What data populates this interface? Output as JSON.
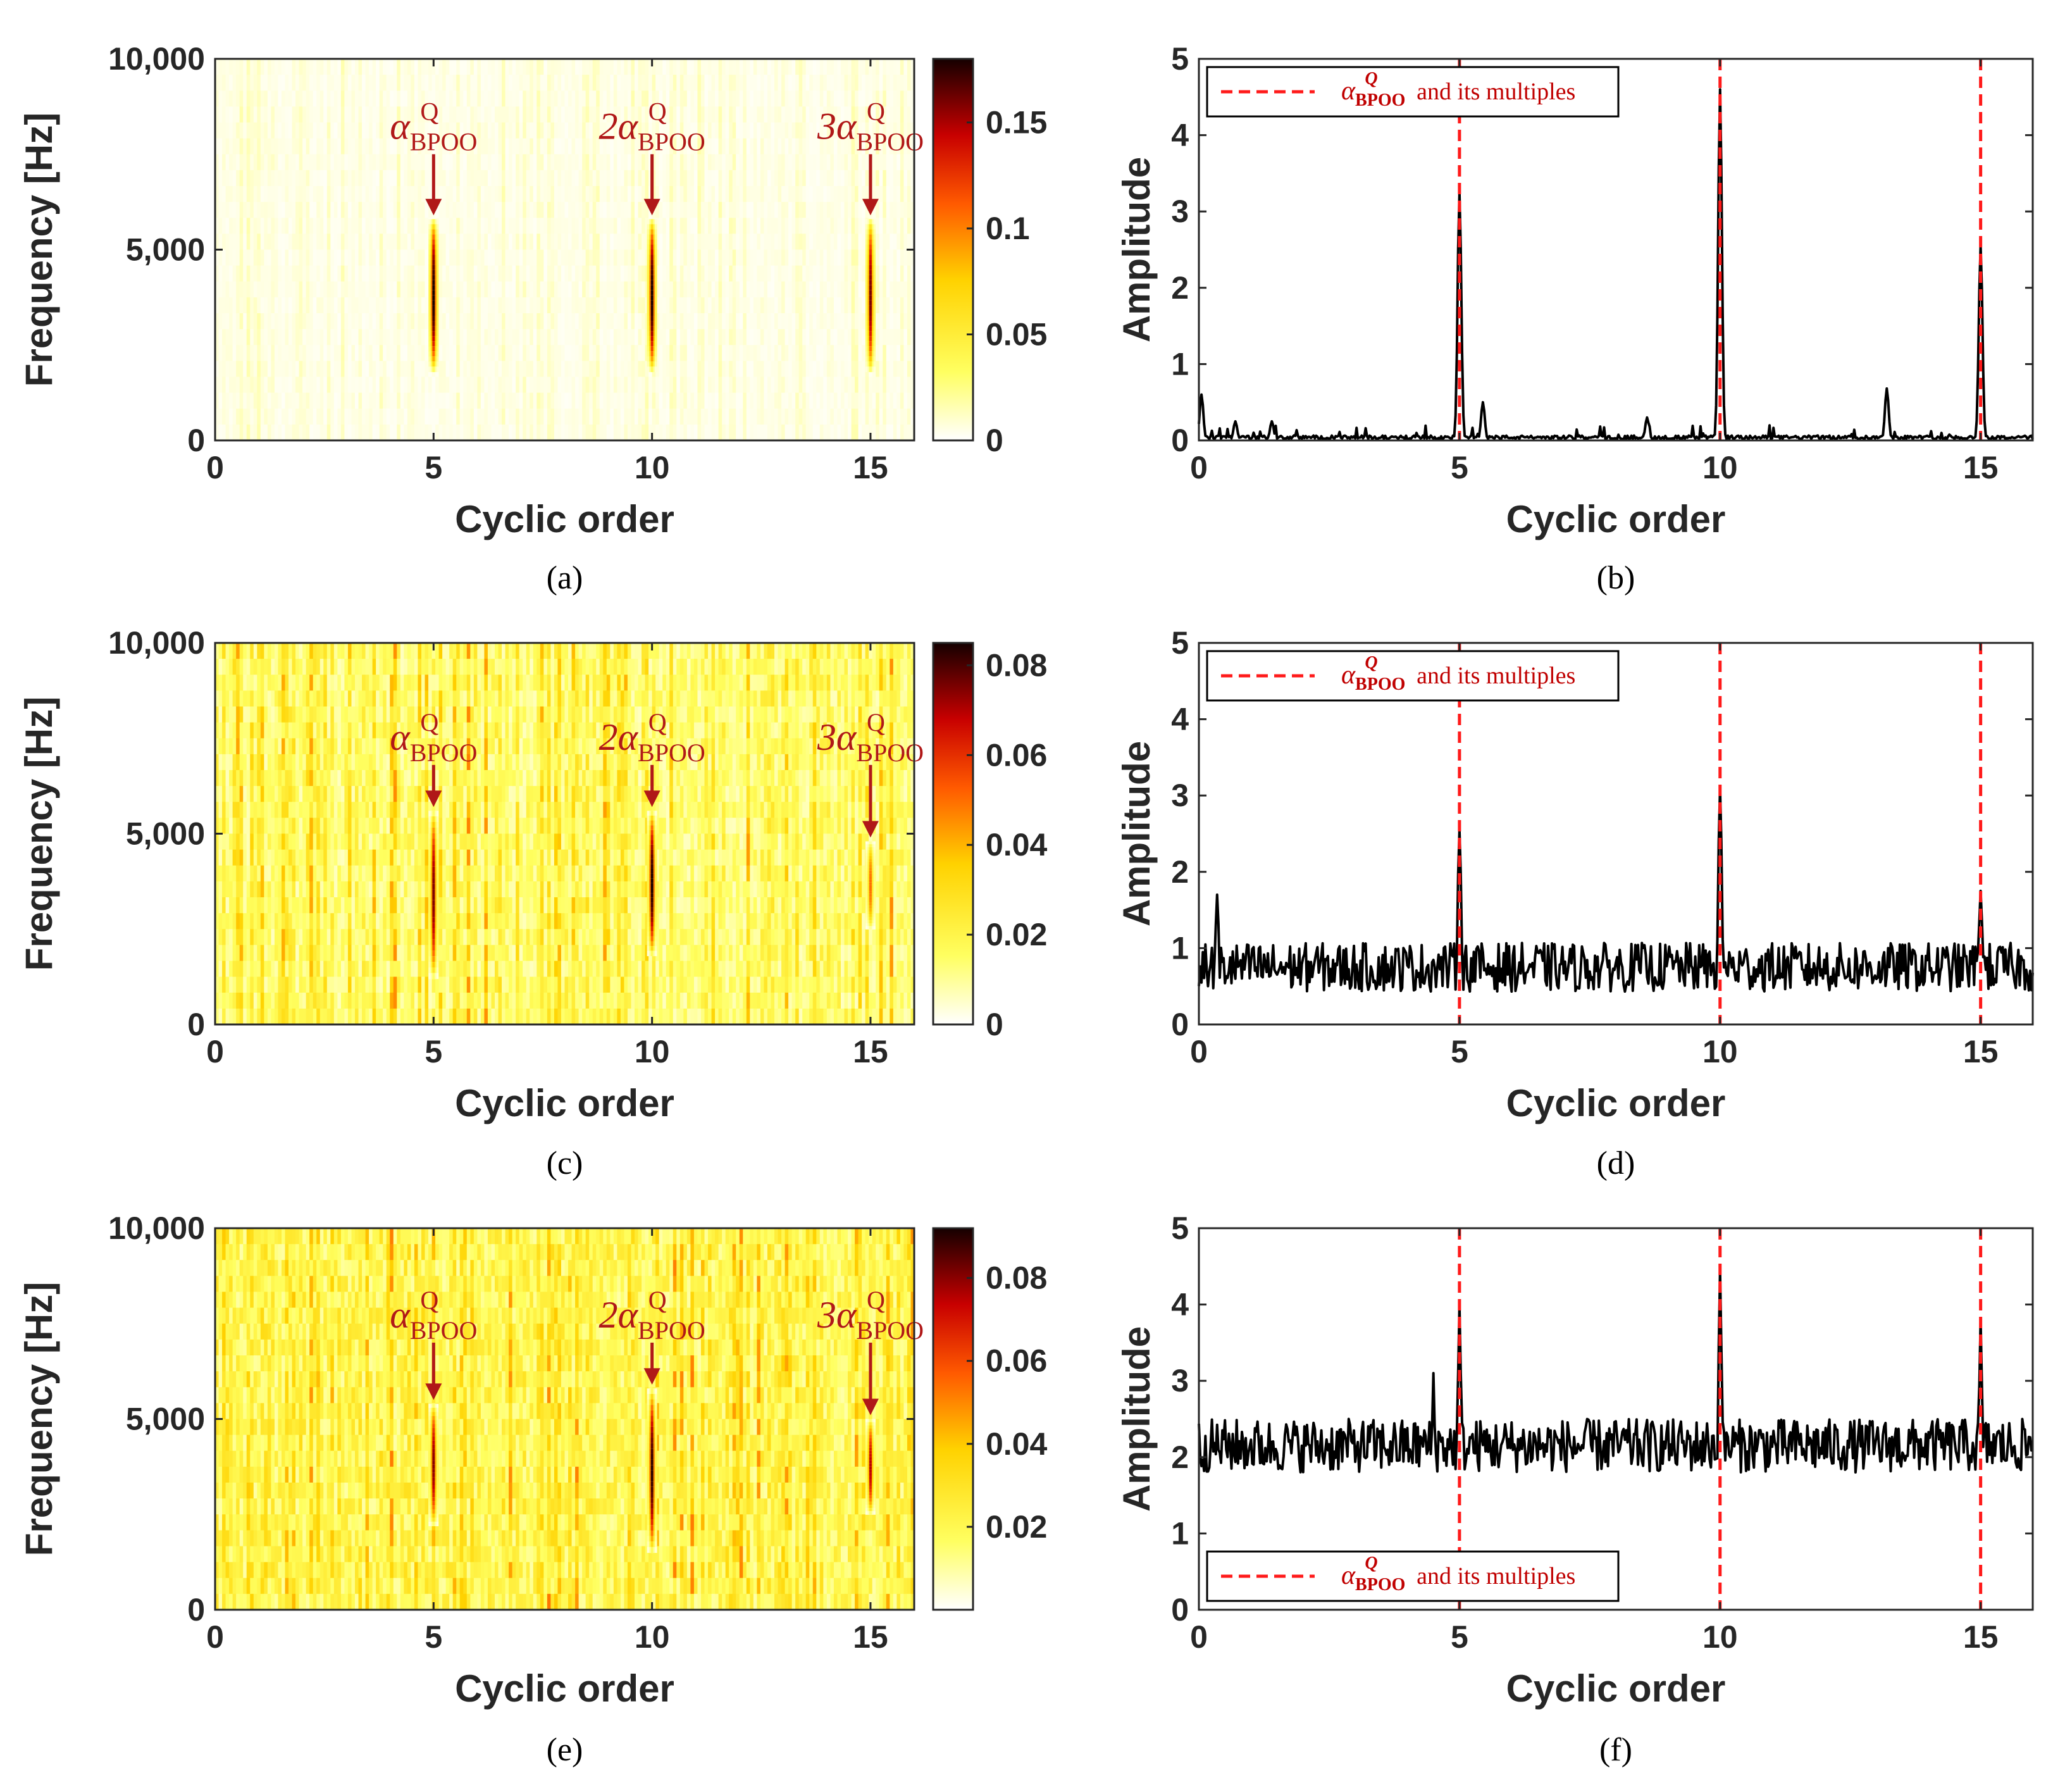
{
  "colors": {
    "annotation": "#b01818",
    "dash": "#ff1a1a",
    "trace": "#000000",
    "axis": "#262626",
    "legend_text": "#c00000"
  },
  "annotation_labels": {
    "multipliers": [
      "",
      "2",
      "3"
    ],
    "symbol": "α",
    "superscript": "Q",
    "subscript": "BPOO"
  },
  "legend": {
    "symbol": "α",
    "superscript": "Q",
    "subscript": "BPOO",
    "suffix": " and its multiples"
  },
  "chart_data": [
    {
      "id": "a",
      "type": "heatmap",
      "caption": "(a)",
      "xlabel": "Cyclic order",
      "ylabel": "Frequency [Hz]",
      "xlim": [
        0,
        16
      ],
      "ylim": [
        0,
        10000
      ],
      "xticks": [
        0,
        5,
        10,
        15
      ],
      "xtick_labels": [
        "0",
        "5",
        "10",
        "15"
      ],
      "yticks": [
        0,
        5000,
        10000
      ],
      "ytick_labels": [
        "0",
        "5,000",
        "10,000"
      ],
      "colorbar": {
        "range": [
          0,
          0.18
        ],
        "ticks": [
          0,
          0.05,
          0.1,
          0.15
        ],
        "tick_labels": [
          "0",
          "0.05",
          "0.1",
          "0.15"
        ]
      },
      "peaks": [
        {
          "x": 5,
          "f_low": 1800,
          "f_high": 5800,
          "max": 0.18
        },
        {
          "x": 10,
          "f_low": 1800,
          "f_high": 5800,
          "max": 0.18
        },
        {
          "x": 15,
          "f_low": 1800,
          "f_high": 5800,
          "max": 0.16
        }
      ],
      "background_level": 0.004,
      "background_variation": 0.008,
      "annotations": [
        {
          "x": 5,
          "f": 7700
        },
        {
          "x": 10,
          "f": 7700
        },
        {
          "x": 15,
          "f": 7700
        }
      ]
    },
    {
      "id": "b",
      "type": "line",
      "caption": "(b)",
      "xlabel": "Cyclic order",
      "ylabel": "Amplitude",
      "xlim": [
        0,
        16
      ],
      "ylim": [
        0,
        5
      ],
      "xticks": [
        0,
        5,
        10,
        15
      ],
      "xtick_labels": [
        "0",
        "5",
        "10",
        "15"
      ],
      "yticks": [
        0,
        1,
        2,
        3,
        4,
        5
      ],
      "ytick_labels": [
        "0",
        "1",
        "2",
        "3",
        "4",
        "5"
      ],
      "vlines": [
        5,
        10,
        15
      ],
      "legend_position": "top-left",
      "baseline": 0.04,
      "noise": 0.04,
      "peaks": [
        {
          "x": 0.05,
          "y": 0.6
        },
        {
          "x": 5,
          "y": 3.25
        },
        {
          "x": 5.45,
          "y": 0.5
        },
        {
          "x": 10,
          "y": 4.6
        },
        {
          "x": 13.2,
          "y": 0.68
        },
        {
          "x": 15,
          "y": 2.55
        },
        {
          "x": 0.7,
          "y": 0.25
        },
        {
          "x": 1.4,
          "y": 0.25
        },
        {
          "x": 8.6,
          "y": 0.3
        }
      ]
    },
    {
      "id": "c",
      "type": "heatmap",
      "caption": "(c)",
      "xlabel": "Cyclic order",
      "ylabel": "Frequency [Hz]",
      "xlim": [
        0,
        16
      ],
      "ylim": [
        0,
        10000
      ],
      "xticks": [
        0,
        5,
        10,
        15
      ],
      "xtick_labels": [
        "0",
        "5",
        "10",
        "15"
      ],
      "yticks": [
        0,
        5000,
        10000
      ],
      "ytick_labels": [
        "0",
        "5,000",
        "10,000"
      ],
      "colorbar": {
        "range": [
          0,
          0.085
        ],
        "ticks": [
          0,
          0.02,
          0.04,
          0.06,
          0.08
        ],
        "tick_labels": [
          "0",
          "0.02",
          "0.04",
          "0.06",
          "0.08"
        ]
      },
      "peaks": [
        {
          "x": 5,
          "f_low": 1200,
          "f_high": 5600,
          "max": 0.075
        },
        {
          "x": 10,
          "f_low": 1800,
          "f_high": 5600,
          "max": 0.085
        },
        {
          "x": 15,
          "f_low": 2500,
          "f_high": 4800,
          "max": 0.05
        }
      ],
      "background_level": 0.012,
      "background_variation": 0.02,
      "annotations": [
        {
          "x": 5,
          "f": 7000
        },
        {
          "x": 10,
          "f": 7000
        },
        {
          "x": 15,
          "f": 7000
        }
      ]
    },
    {
      "id": "d",
      "type": "line",
      "caption": "(d)",
      "xlabel": "Cyclic order",
      "ylabel": "Amplitude",
      "xlim": [
        0,
        16
      ],
      "ylim": [
        0,
        5
      ],
      "xticks": [
        0,
        5,
        10,
        15
      ],
      "xtick_labels": [
        "0",
        "5",
        "10",
        "15"
      ],
      "yticks": [
        0,
        1,
        2,
        3,
        4,
        5
      ],
      "ytick_labels": [
        "0",
        "1",
        "2",
        "3",
        "4",
        "5"
      ],
      "vlines": [
        5,
        10,
        15
      ],
      "legend_position": "top-left",
      "baseline": 0.75,
      "noise": 0.32,
      "peaks": [
        {
          "x": 5,
          "y": 2.55
        },
        {
          "x": 10,
          "y": 3.1
        },
        {
          "x": 15,
          "y": 1.75
        },
        {
          "x": 0.35,
          "y": 1.7
        }
      ]
    },
    {
      "id": "e",
      "type": "heatmap",
      "caption": "(e)",
      "xlabel": "Cyclic order",
      "ylabel": "Frequency [Hz]",
      "xlim": [
        0,
        16
      ],
      "ylim": [
        0,
        10000
      ],
      "xticks": [
        0,
        5,
        10,
        15
      ],
      "xtick_labels": [
        "0",
        "5",
        "10",
        "15"
      ],
      "yticks": [
        0,
        5000,
        10000
      ],
      "ytick_labels": [
        "0",
        "5,000",
        "10,000"
      ],
      "colorbar": {
        "range": [
          0,
          0.092
        ],
        "ticks": [
          0.02,
          0.04,
          0.06,
          0.08
        ],
        "tick_labels": [
          "0.02",
          "0.04",
          "0.06",
          "0.08"
        ]
      },
      "peaks": [
        {
          "x": 5,
          "f_low": 2200,
          "f_high": 5400,
          "max": 0.08
        },
        {
          "x": 10,
          "f_low": 1500,
          "f_high": 5800,
          "max": 0.09
        },
        {
          "x": 15,
          "f_low": 2500,
          "f_high": 5000,
          "max": 0.075
        }
      ],
      "background_level": 0.018,
      "background_variation": 0.018,
      "annotations": [
        {
          "x": 5,
          "f": 7200
        },
        {
          "x": 10,
          "f": 7200
        },
        {
          "x": 15,
          "f": 7200
        }
      ]
    },
    {
      "id": "f",
      "type": "line",
      "caption": "(f)",
      "xlabel": "Cyclic order",
      "ylabel": "Amplitude",
      "xlim": [
        0,
        16
      ],
      "ylim": [
        0,
        5
      ],
      "xticks": [
        0,
        5,
        10,
        15
      ],
      "xtick_labels": [
        "0",
        "5",
        "10",
        "15"
      ],
      "yticks": [
        0,
        1,
        2,
        3,
        4,
        5
      ],
      "ytick_labels": [
        "0",
        "1",
        "2",
        "3",
        "4",
        "5"
      ],
      "vlines": [
        5,
        10,
        15
      ],
      "legend_position": "bottom-left",
      "baseline": 2.15,
      "noise": 0.35,
      "peaks": [
        {
          "x": 5,
          "y": 4.0
        },
        {
          "x": 10,
          "y": 4.45
        },
        {
          "x": 15,
          "y": 3.8
        },
        {
          "x": 4.5,
          "y": 3.1
        }
      ]
    }
  ]
}
